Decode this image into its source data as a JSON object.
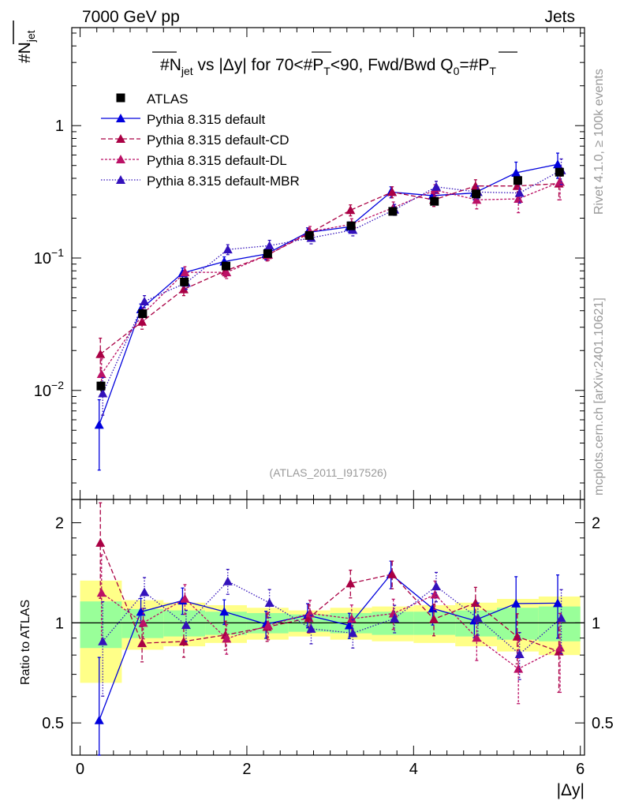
{
  "header": {
    "left": "7000 GeV pp",
    "right": "Jets"
  },
  "title": {
    "prefix": "#N",
    "jet_sub": "jet",
    "middle": " vs |Δy| for 70<#P",
    "t_sub": "T",
    "after_pt": "<90, Fwd/Bwd Q",
    "zero_sub": "0",
    "eq": "=#P",
    "t_sub2": "T"
  },
  "ylabel_top": {
    "main": "#N",
    "sub": "jet"
  },
  "ylabel_bottom": "Ratio to ATLAS",
  "xlabel": "|Δy|",
  "analysis_tag": "(ATLAS_2011_I917526)",
  "side_text_upper": "Rivet 4.1.0, ≥ 100k events",
  "side_text_lower": "mcplots.cern.ch [arXiv:2401.10621]",
  "legend": [
    {
      "label": "ATLAS"
    },
    {
      "label": "Pythia 8.315 default"
    },
    {
      "label": "Pythia 8.315 default-CD"
    },
    {
      "label": "Pythia 8.315 default-DL"
    },
    {
      "label": "Pythia 8.315 default-MBR"
    }
  ],
  "colors": {
    "data": "#000000",
    "default": "#0000dd",
    "cd": "#aa0044",
    "dl": "#bb1166",
    "mbr": "#3311bb",
    "band_inner": "#99ff99",
    "band_outer": "#ffff88"
  },
  "chart_data": {
    "type": "line",
    "x": [
      0.25,
      0.75,
      1.25,
      1.75,
      2.25,
      2.75,
      3.25,
      3.75,
      4.25,
      4.75,
      5.25,
      5.75
    ],
    "x_bin_edges": [
      0,
      0.5,
      1.0,
      1.5,
      2.0,
      2.5,
      3.0,
      3.5,
      4.0,
      4.5,
      5.0,
      5.5,
      6.0
    ],
    "xlim": [
      -0.1,
      6.05
    ],
    "ylim_top": [
      0.0015,
      5.5
    ],
    "ylim_bottom": [
      0.4,
      2.35
    ],
    "y_scale_top": "log",
    "y_scale_bottom": "log",
    "top_yticks": [
      {
        "value": 1,
        "base": "1",
        "exp": ""
      },
      {
        "value": 0.1,
        "base": "10",
        "exp": "−1"
      },
      {
        "value": 0.01,
        "base": "10",
        "exp": "−2"
      }
    ],
    "bottom_yticks": [
      {
        "value": 2,
        "label": "2"
      },
      {
        "value": 1,
        "label": "1"
      },
      {
        "value": 0.5,
        "label": "0.5"
      }
    ],
    "xticks": [
      {
        "value": 0,
        "label": "0"
      },
      {
        "value": 2,
        "label": "2"
      },
      {
        "value": 4,
        "label": "4"
      },
      {
        "value": 6,
        "label": "6"
      }
    ],
    "data": {
      "name": "ATLAS",
      "values": [
        0.0108,
        0.038,
        0.066,
        0.087,
        0.108,
        0.148,
        0.175,
        0.225,
        0.268,
        0.305,
        0.385,
        0.445
      ],
      "errors": [
        0.001,
        0.003,
        0.005,
        0.006,
        0.007,
        0.01,
        0.012,
        0.015,
        0.018,
        0.02,
        0.025,
        0.03
      ]
    },
    "band_inner": [
      0.16,
      0.1,
      0.09,
      0.08,
      0.07,
      0.06,
      0.07,
      0.08,
      0.08,
      0.09,
      0.11,
      0.12
    ],
    "band_outer": [
      0.34,
      0.17,
      0.15,
      0.13,
      0.11,
      0.09,
      0.11,
      0.12,
      0.13,
      0.15,
      0.18,
      0.2
    ],
    "series": [
      {
        "name": "Pythia 8.315 default",
        "key": "default",
        "dash": "",
        "values": [
          0.0055,
          0.041,
          0.077,
          0.094,
          0.107,
          0.156,
          0.172,
          0.315,
          0.296,
          0.31,
          0.44,
          0.51
        ],
        "errors": [
          0.003,
          0.004,
          0.007,
          0.008,
          0.01,
          0.013,
          0.015,
          0.03,
          0.032,
          0.035,
          0.09,
          0.11
        ]
      },
      {
        "name": "Pythia 8.315 default-CD",
        "key": "cd",
        "dash": "6,3",
        "values": [
          0.0188,
          0.033,
          0.058,
          0.08,
          0.105,
          0.153,
          0.23,
          0.315,
          0.275,
          0.35,
          0.35,
          0.365
        ],
        "errors": [
          0.006,
          0.004,
          0.006,
          0.008,
          0.01,
          0.015,
          0.022,
          0.03,
          0.03,
          0.04,
          0.06,
          0.09
        ]
      },
      {
        "name": "Pythia 8.315 default-DL",
        "key": "dl",
        "dash": "3,2",
        "values": [
          0.0133,
          0.038,
          0.078,
          0.078,
          0.106,
          0.158,
          0.18,
          0.24,
          0.326,
          0.275,
          0.28,
          0.375
        ],
        "errors": [
          0.004,
          0.004,
          0.008,
          0.008,
          0.01,
          0.015,
          0.018,
          0.025,
          0.032,
          0.04,
          0.06,
          0.1
        ]
      },
      {
        "name": "Pythia 8.315 default-MBR",
        "key": "mbr",
        "dash": "1.5,2",
        "values": [
          0.0095,
          0.047,
          0.065,
          0.116,
          0.124,
          0.142,
          0.163,
          0.232,
          0.345,
          0.315,
          0.31,
          0.46
        ],
        "errors": [
          0.003,
          0.005,
          0.007,
          0.01,
          0.012,
          0.014,
          0.016,
          0.022,
          0.035,
          0.035,
          0.05,
          0.1
        ]
      }
    ]
  }
}
